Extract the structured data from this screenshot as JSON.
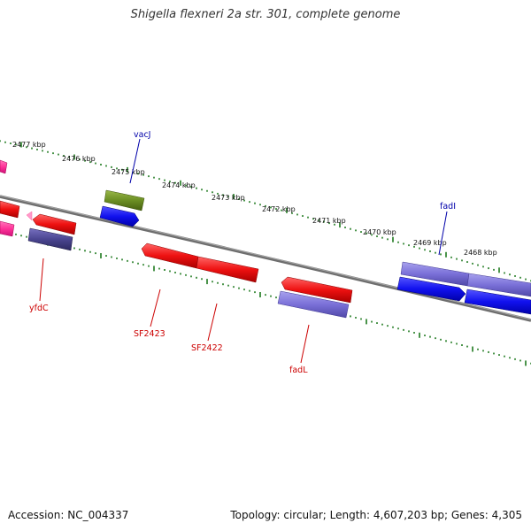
{
  "title": "Shigella flexneri 2a str. 301, complete genome",
  "footer": {
    "accession": "Accession: NC_004337",
    "summary": "Topology: circular; Length: 4,607,203 bp; Genes: 4,305"
  },
  "ruler": {
    "labels": [
      "2477 kbp",
      "2476 kbp",
      "2475 kbp",
      "2474 kbp",
      "2473 kbp",
      "2472 kbp",
      "2471 kbp",
      "2470 kbp",
      "2469 kbp",
      "2468 kbp"
    ]
  },
  "colors": {
    "backbone": "#7a7a7a",
    "ticks": "#1e7a1e",
    "gene_red": "#ee1111",
    "gene_blue": "#1111ee",
    "gene_purple": "#7a70d8",
    "gene_dark_purple": "#4a4590",
    "gene_green": "#6b8e23",
    "gene_pink": "#ff3399",
    "label_red": "#cc0000",
    "label_blue": "#0000aa"
  },
  "gene_labels": {
    "vacJ": "vacJ",
    "fadI": "fadI",
    "yfdC": "yfdC",
    "SF2423": "SF2423",
    "SF2422": "SF2422",
    "fadL": "fadL"
  }
}
